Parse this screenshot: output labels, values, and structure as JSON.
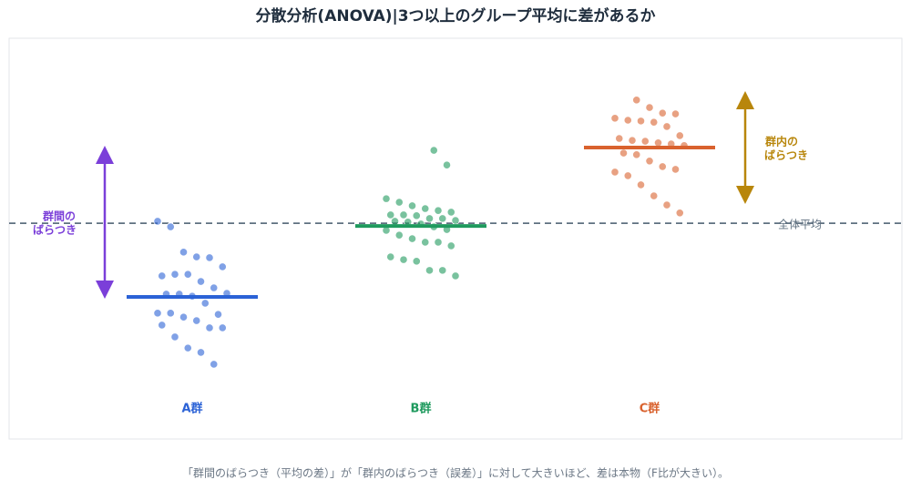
{
  "chart_data": {
    "type": "strip",
    "title": "分散分析(ANOVA)|3つ以上のグループ平均に差があるか",
    "caption": "「群間のばらつき（平均の差）」が「群内のばらつき（誤差）」に対して大きいほど、差は本物（F比が大きい）。",
    "categories": [
      "A群",
      "B群",
      "C群"
    ],
    "ylim": [
      0,
      100
    ],
    "series": [
      {
        "color": "#2b62d6",
        "mean": 35.4,
        "values": [
          54.5,
          53.1,
          46.7,
          45.5,
          45.3,
          43.0,
          40.7,
          41.1,
          41.1,
          39.3,
          37.7,
          36.3,
          36.1,
          36.1,
          35.6,
          33.8,
          31.0,
          31.3,
          31.3,
          30.3,
          29.4,
          27.6,
          27.6,
          28.3,
          25.3,
          22.5,
          21.4,
          18.4
        ]
      },
      {
        "color": "#1f9a5e",
        "mean": 53.3,
        "values": [
          72.4,
          68.7,
          60.2,
          59.3,
          58.4,
          57.7,
          57.2,
          56.8,
          56.1,
          56.1,
          55.9,
          55.2,
          55.2,
          54.7,
          54.5,
          54.3,
          53.8,
          53.1,
          52.4,
          52.2,
          51.0,
          50.1,
          49.2,
          49.2,
          48.3,
          45.5,
          44.8,
          44.4,
          42.1,
          42.1,
          40.7
        ]
      },
      {
        "color": "#d9622e",
        "mean": 73.1,
        "values": [
          85.1,
          83.2,
          81.8,
          81.6,
          80.5,
          80.0,
          79.8,
          79.5,
          78.4,
          76.1,
          75.4,
          74.9,
          74.7,
          74.3,
          74.0,
          73.6,
          71.7,
          71.3,
          69.7,
          68.3,
          67.6,
          66.9,
          66.0,
          63.7,
          60.9,
          58.6,
          56.6
        ]
      }
    ],
    "grand_mean": 54.0,
    "grand_mean_label": "全体平均",
    "between_label": [
      "群間の",
      "ばらつき"
    ],
    "within_label": [
      "群内の",
      "ばらつき"
    ]
  }
}
